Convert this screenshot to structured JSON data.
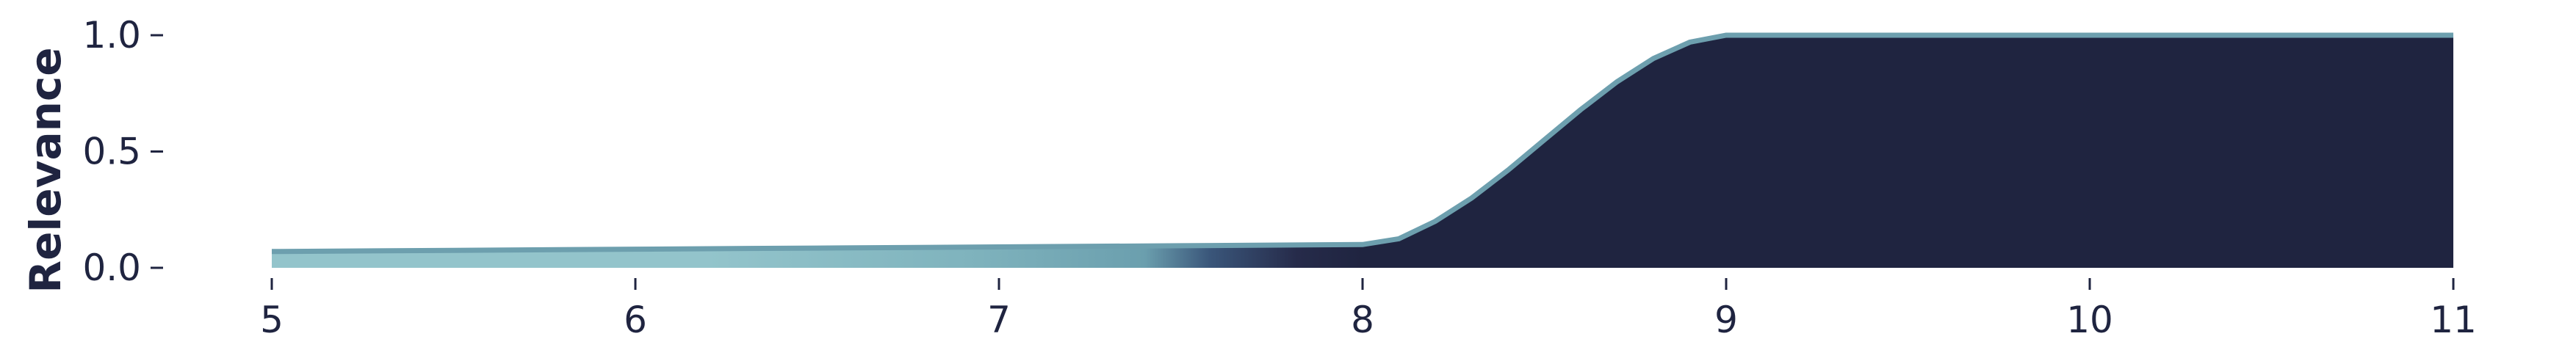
{
  "chart_data": {
    "type": "area",
    "title": "",
    "xlabel": "",
    "ylabel": "Relevance",
    "xlim": [
      5,
      11
    ],
    "ylim": [
      0,
      1
    ],
    "x_ticks": [
      "5",
      "6",
      "7",
      "8",
      "9",
      "10",
      "11"
    ],
    "y_ticks": [
      "0.0",
      "0.5",
      "1.0"
    ],
    "grid": false,
    "legend": "none",
    "x": [
      5.0,
      5.5,
      6.0,
      6.5,
      7.0,
      7.5,
      8.0,
      8.1,
      8.2,
      8.3,
      8.4,
      8.5,
      8.6,
      8.7,
      8.8,
      8.9,
      9.0,
      9.5,
      10.0,
      10.5,
      11.0
    ],
    "y": [
      0.07,
      0.075,
      0.08,
      0.085,
      0.09,
      0.095,
      0.1,
      0.125,
      0.2,
      0.3,
      0.42,
      0.55,
      0.68,
      0.8,
      0.9,
      0.97,
      1.0,
      1.0,
      1.0,
      1.0,
      1.0
    ],
    "colors": {
      "line": "#6d9fae",
      "fill_gradient": [
        "#93c4cb",
        "#93c4cb",
        "#7fb3bd",
        "#6b9fae",
        "#3a567a",
        "#262b4a",
        "#1f2440"
      ],
      "text": "#1f2440"
    }
  }
}
